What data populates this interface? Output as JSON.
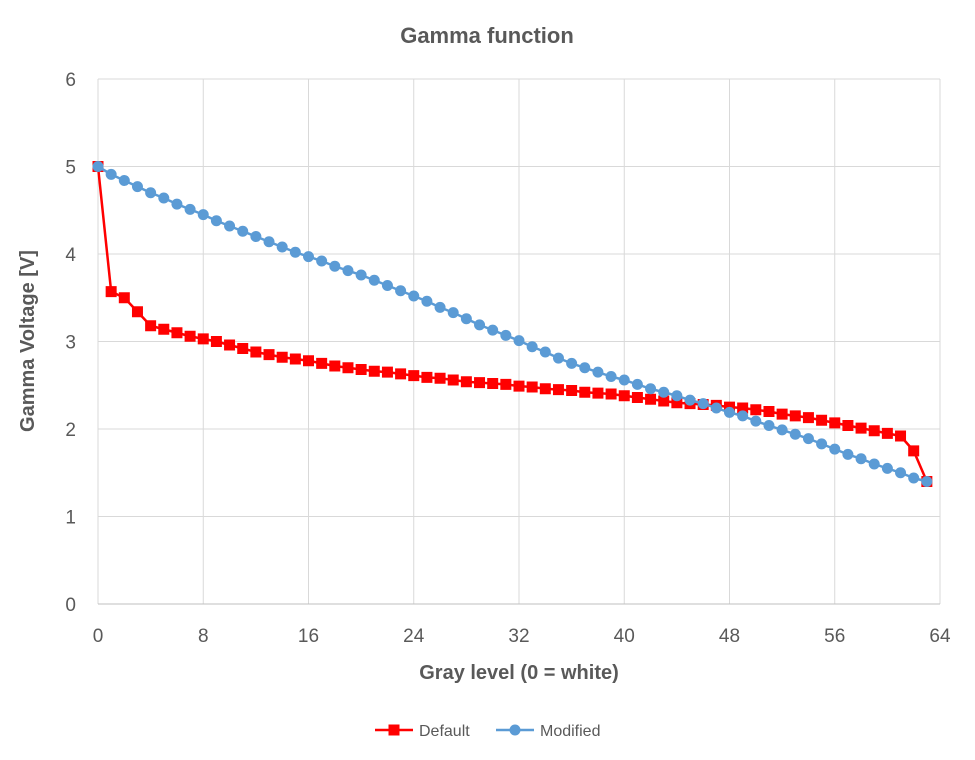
{
  "chart_data": {
    "type": "line",
    "title": "Gamma function",
    "xlabel": "Gray level (0 = white)",
    "ylabel": "Gamma Voltage [V]",
    "xlim": [
      0,
      64
    ],
    "ylim": [
      0,
      6
    ],
    "xticks": [
      0,
      8,
      16,
      24,
      32,
      40,
      48,
      56,
      64
    ],
    "yticks": [
      0,
      1,
      2,
      3,
      4,
      5,
      6
    ],
    "grid": true,
    "legend_position": "bottom",
    "series": [
      {
        "name": "Default",
        "color": "#ff0000",
        "marker": "square",
        "x": [
          0,
          1,
          2,
          3,
          4,
          5,
          6,
          7,
          8,
          9,
          10,
          11,
          12,
          13,
          14,
          15,
          16,
          17,
          18,
          19,
          20,
          21,
          22,
          23,
          24,
          25,
          26,
          27,
          28,
          29,
          30,
          31,
          32,
          33,
          34,
          35,
          36,
          37,
          38,
          39,
          40,
          41,
          42,
          43,
          44,
          45,
          46,
          47,
          48,
          49,
          50,
          51,
          52,
          53,
          54,
          55,
          56,
          57,
          58,
          59,
          60,
          61,
          62,
          63
        ],
        "values": [
          5.0,
          3.57,
          3.5,
          3.34,
          3.18,
          3.14,
          3.1,
          3.06,
          3.03,
          3.0,
          2.96,
          2.92,
          2.88,
          2.85,
          2.82,
          2.8,
          2.78,
          2.75,
          2.72,
          2.7,
          2.68,
          2.66,
          2.65,
          2.63,
          2.61,
          2.59,
          2.58,
          2.56,
          2.54,
          2.53,
          2.52,
          2.51,
          2.49,
          2.48,
          2.46,
          2.45,
          2.44,
          2.42,
          2.41,
          2.4,
          2.38,
          2.36,
          2.34,
          2.32,
          2.3,
          2.29,
          2.28,
          2.27,
          2.25,
          2.24,
          2.22,
          2.2,
          2.17,
          2.15,
          2.13,
          2.1,
          2.07,
          2.04,
          2.01,
          1.98,
          1.95,
          1.92,
          1.75,
          1.4
        ]
      },
      {
        "name": "Modified",
        "color": "#5b9bd5",
        "marker": "circle",
        "x": [
          0,
          1,
          2,
          3,
          4,
          5,
          6,
          7,
          8,
          9,
          10,
          11,
          12,
          13,
          14,
          15,
          16,
          17,
          18,
          19,
          20,
          21,
          22,
          23,
          24,
          25,
          26,
          27,
          28,
          29,
          30,
          31,
          32,
          33,
          34,
          35,
          36,
          37,
          38,
          39,
          40,
          41,
          42,
          43,
          44,
          45,
          46,
          47,
          48,
          49,
          50,
          51,
          52,
          53,
          54,
          55,
          56,
          57,
          58,
          59,
          60,
          61,
          62,
          63
        ],
        "values": [
          5.0,
          4.91,
          4.84,
          4.77,
          4.7,
          4.64,
          4.57,
          4.51,
          4.45,
          4.38,
          4.32,
          4.26,
          4.2,
          4.14,
          4.08,
          4.02,
          3.97,
          3.92,
          3.86,
          3.81,
          3.76,
          3.7,
          3.64,
          3.58,
          3.52,
          3.46,
          3.39,
          3.33,
          3.26,
          3.19,
          3.13,
          3.07,
          3.01,
          2.94,
          2.88,
          2.81,
          2.75,
          2.7,
          2.65,
          2.6,
          2.56,
          2.51,
          2.46,
          2.42,
          2.38,
          2.33,
          2.29,
          2.24,
          2.19,
          2.15,
          2.09,
          2.04,
          1.99,
          1.94,
          1.89,
          1.83,
          1.77,
          1.71,
          1.66,
          1.6,
          1.55,
          1.5,
          1.44,
          1.4
        ]
      }
    ]
  }
}
